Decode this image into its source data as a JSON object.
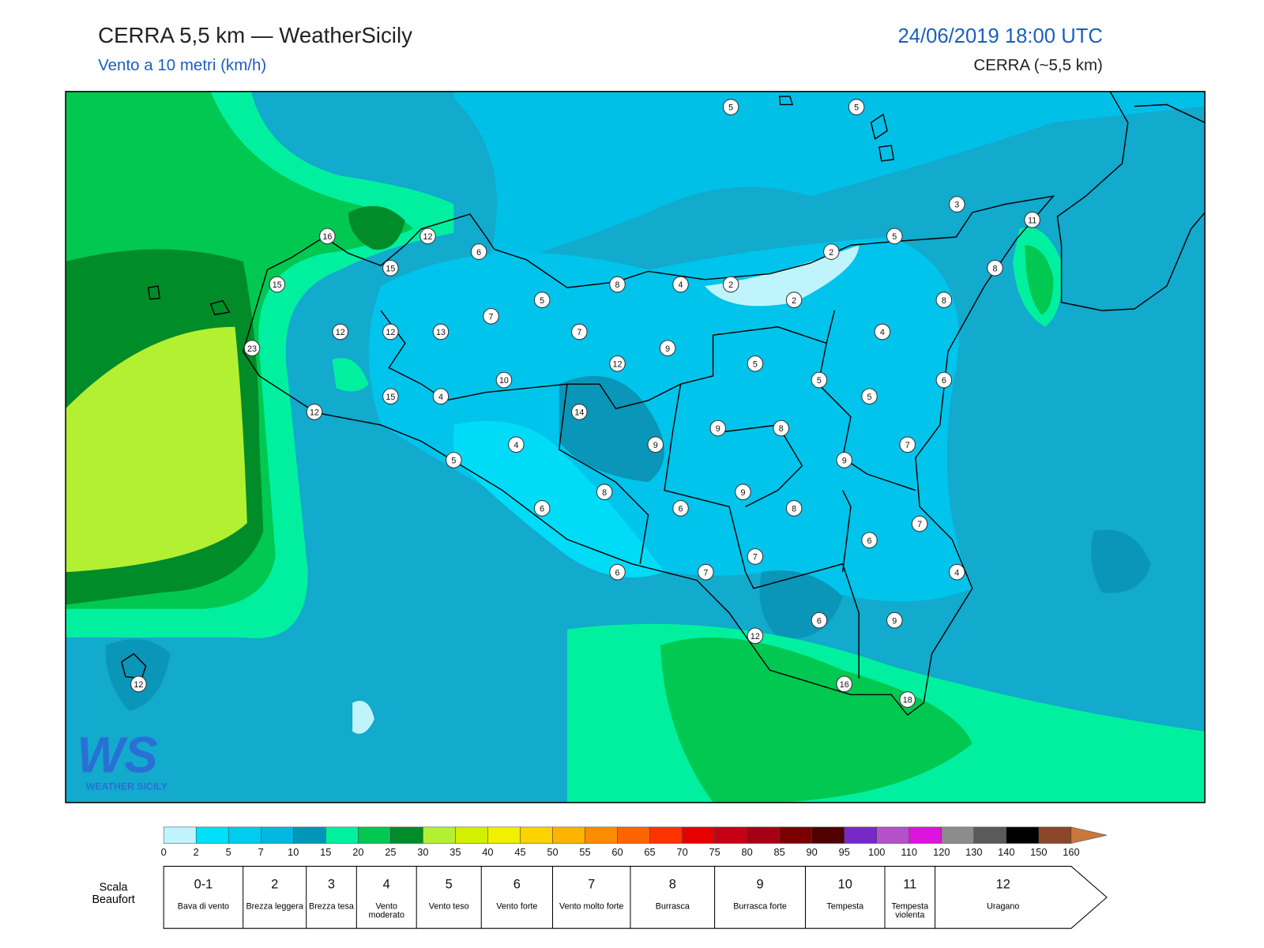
{
  "header": {
    "title": "CERRA 5,5 km — WeatherSicily",
    "subtitle": "Vento a 10 metri (km/h)",
    "datetime": "24/06/2019 18:00 UTC",
    "model": "CERRA (~5,5 km)"
  },
  "map": {
    "stations": [
      16,
      12,
      6,
      15,
      15,
      12,
      12,
      13,
      23,
      12,
      15,
      4,
      7,
      5,
      7,
      10,
      12,
      14,
      8,
      9,
      4,
      2,
      2,
      2,
      5,
      3,
      11,
      8,
      8,
      4,
      5,
      5,
      6,
      5,
      9,
      8,
      9,
      7,
      9,
      4,
      5,
      8,
      9,
      6,
      6,
      8,
      7,
      6,
      7,
      7,
      6,
      4,
      6,
      9,
      12,
      16,
      18,
      12,
      5,
      5
    ],
    "logo": {
      "mark": "WS",
      "name": "WEATHER SICILY"
    }
  },
  "legend": {
    "colorbar": {
      "ticks": [
        0,
        2,
        5,
        7,
        10,
        15,
        20,
        25,
        30,
        35,
        40,
        45,
        50,
        55,
        60,
        65,
        70,
        75,
        80,
        85,
        90,
        95,
        100,
        110,
        120,
        130,
        140,
        150,
        160
      ],
      "colors": [
        "#c0f4fc",
        "#00e0fa",
        "#00ccf0",
        "#00b8e0",
        "#0096b8",
        "#00f0a0",
        "#00c850",
        "#008c28",
        "#b4f032",
        "#d2f000",
        "#f0f000",
        "#fcd200",
        "#fcb400",
        "#fc8c00",
        "#fc6400",
        "#fc3200",
        "#e60000",
        "#c80014",
        "#a50014",
        "#780000",
        "#500000",
        "#7828c8",
        "#b450c8",
        "#dc14dc",
        "#8c8c8c",
        "#5a5a5a",
        "#000000",
        "#8c4628",
        "#c8783c"
      ]
    },
    "beaufort": {
      "label": "Scala Beaufort",
      "levels": [
        {
          "force": "0-1",
          "description": "Bava di vento"
        },
        {
          "force": "2",
          "description": "Brezza leggera"
        },
        {
          "force": "3",
          "description": "Brezza tesa"
        },
        {
          "force": "4",
          "description": "Vento moderato"
        },
        {
          "force": "5",
          "description": "Vento teso"
        },
        {
          "force": "6",
          "description": "Vento forte"
        },
        {
          "force": "7",
          "description": "Vento molto forte"
        },
        {
          "force": "8",
          "description": "Burrasca"
        },
        {
          "force": "9",
          "description": "Burrasca forte"
        },
        {
          "force": "10",
          "description": "Tempesta"
        },
        {
          "force": "11",
          "description": "Tempesta violenta"
        },
        {
          "force": "12",
          "description": "Uragano"
        }
      ]
    }
  }
}
